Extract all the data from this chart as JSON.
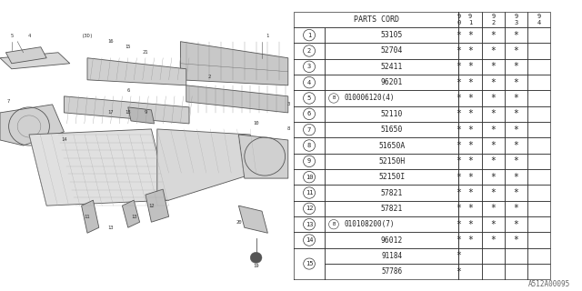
{
  "title": "A512A00095",
  "rows": [
    {
      "num": "1",
      "code": "53105",
      "b": false,
      "marks": [
        1,
        1,
        1,
        1,
        0
      ]
    },
    {
      "num": "2",
      "code": "52704",
      "b": false,
      "marks": [
        1,
        1,
        1,
        1,
        0
      ]
    },
    {
      "num": "3",
      "code": "52411",
      "b": false,
      "marks": [
        1,
        1,
        1,
        1,
        0
      ]
    },
    {
      "num": "4",
      "code": "96201",
      "b": false,
      "marks": [
        1,
        1,
        1,
        1,
        0
      ]
    },
    {
      "num": "5",
      "code": "010006120(4)",
      "b": true,
      "marks": [
        1,
        1,
        1,
        1,
        0
      ]
    },
    {
      "num": "6",
      "code": "52110",
      "b": false,
      "marks": [
        1,
        1,
        1,
        1,
        0
      ]
    },
    {
      "num": "7",
      "code": "51650",
      "b": false,
      "marks": [
        1,
        1,
        1,
        1,
        0
      ]
    },
    {
      "num": "8",
      "code": "51650A",
      "b": false,
      "marks": [
        1,
        1,
        1,
        1,
        0
      ]
    },
    {
      "num": "9",
      "code": "52150H",
      "b": false,
      "marks": [
        1,
        1,
        1,
        1,
        0
      ]
    },
    {
      "num": "10",
      "code": "52150I",
      "b": false,
      "marks": [
        1,
        1,
        1,
        1,
        0
      ]
    },
    {
      "num": "11",
      "code": "57821",
      "b": false,
      "marks": [
        1,
        1,
        1,
        1,
        0
      ]
    },
    {
      "num": "12",
      "code": "57821",
      "b": false,
      "marks": [
        1,
        1,
        1,
        1,
        0
      ]
    },
    {
      "num": "13",
      "code": "010108200(7)",
      "b": true,
      "marks": [
        1,
        1,
        1,
        1,
        0
      ]
    },
    {
      "num": "14",
      "code": "96012",
      "b": false,
      "marks": [
        1,
        1,
        1,
        1,
        0
      ]
    },
    {
      "num": "15",
      "code": "91184",
      "b": false,
      "marks": [
        1,
        0,
        0,
        0,
        0
      ],
      "sub": true,
      "sub_code": "57786",
      "sub_marks": [
        1,
        0,
        0,
        0,
        0
      ]
    }
  ],
  "year_cols": [
    "9\n0",
    "9\n1",
    "9\n2",
    "9\n3",
    "9\n4"
  ],
  "bg_color": "#ffffff"
}
